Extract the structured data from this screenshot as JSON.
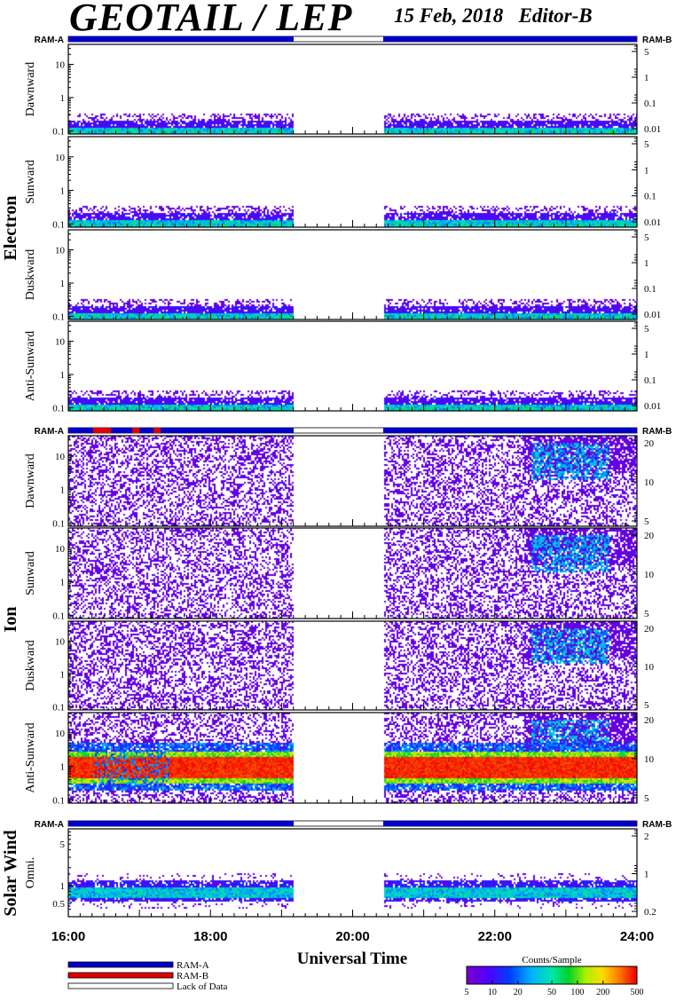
{
  "header": {
    "title": "GEOTAIL / LEP",
    "date": "15 Feb, 2018",
    "editor": "Editor-B"
  },
  "chart_data": {
    "type": "heatmap",
    "xlabel": "Universal Time",
    "x_ticks": [
      "16:00",
      "18:00",
      "20:00",
      "22:00",
      "24:00"
    ],
    "x_range_hours": [
      16,
      24
    ],
    "data_gap_hours": [
      19.17,
      20.43
    ],
    "sections": [
      {
        "name": "Electron",
        "ram_left": "RAM-A",
        "ram_right": "RAM-B",
        "left_axis": {
          "scale": "log",
          "range": [
            0.08,
            40
          ],
          "ticks": [
            "10",
            "1",
            "0.1"
          ]
        },
        "right_axis": {
          "ticks": [
            "5",
            "1",
            "0.1",
            "0.01"
          ]
        },
        "panels": [
          {
            "label": "Dawnward",
            "mode": "electron"
          },
          {
            "label": "Sunward",
            "mode": "electron"
          },
          {
            "label": "Duskward",
            "mode": "electron"
          },
          {
            "label": "Anti-Sunward",
            "mode": "electron"
          }
        ]
      },
      {
        "name": "Ion",
        "ram_left": "RAM-A",
        "ram_right": "RAM-B",
        "left_axis": {
          "scale": "log",
          "range": [
            0.08,
            40
          ],
          "ticks": [
            "10",
            "1",
            "0.1"
          ]
        },
        "right_axis": {
          "ticks": [
            "20",
            "10",
            "5"
          ]
        },
        "panels": [
          {
            "label": "Dawnward",
            "mode": "ion"
          },
          {
            "label": "Sunward",
            "mode": "ion"
          },
          {
            "label": "Duskward",
            "mode": "ion"
          },
          {
            "label": "Anti-Sunward",
            "mode": "ion-anti"
          }
        ]
      },
      {
        "name": "Solar Wind",
        "ram_left": "RAM-A",
        "ram_right": "RAM-B",
        "left_axis": {
          "scale": "log",
          "range": [
            0.3,
            9
          ],
          "ticks": [
            "5",
            "1",
            "0.5"
          ]
        },
        "right_axis": {
          "ticks": [
            "2",
            "1",
            "0.2"
          ]
        },
        "panels": [
          {
            "label": "Omni.",
            "mode": "solarwind"
          }
        ]
      }
    ],
    "legend": [
      {
        "label": "RAM-A",
        "color": "#0000c8"
      },
      {
        "label": "RAM-B",
        "color": "#e00000"
      },
      {
        "label": "Lack of Data",
        "color": "#ffffff"
      }
    ],
    "colorbar": {
      "title": "Counts/Sample",
      "scale": "log",
      "range": [
        5,
        500
      ],
      "ticks": [
        "5",
        "10",
        "20",
        "50",
        "100",
        "200",
        "500"
      ]
    }
  }
}
